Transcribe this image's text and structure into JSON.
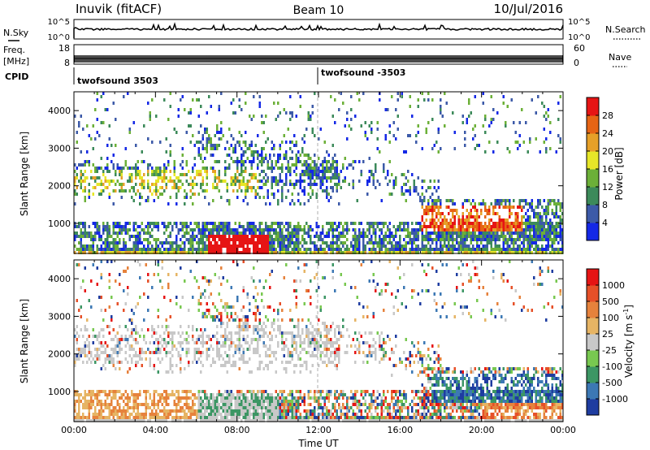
{
  "header": {
    "station": "Inuvik (fitACF)",
    "beam": "Beam 10",
    "date": "10/Jul/2016"
  },
  "panels": {
    "nsky": {
      "label": "N.Sky",
      "ticks": [
        "10^5",
        "10^0"
      ]
    },
    "nsearch": {
      "label": "N.Search",
      "ticks": [
        "10^5",
        "10^0"
      ]
    },
    "freq": {
      "label_line1": "Freq.",
      "label_line2": "[MHz]",
      "ticks": [
        "18",
        "8"
      ]
    },
    "nave": {
      "label": "Nave",
      "ticks": [
        "60",
        "0"
      ]
    },
    "cpid": {
      "label": "CPID",
      "segments": [
        "twofsound 3503",
        "twofsound -3503"
      ]
    }
  },
  "chart_data": [
    {
      "type": "heatmap",
      "name": "power",
      "ylabel": "Slant Range [km]",
      "yticks": [
        "1000",
        "2000",
        "3000",
        "4000"
      ],
      "ylim": [
        200,
        4500
      ],
      "xlim_hours": [
        0,
        24
      ],
      "colorbar": {
        "label": "Power [dB]",
        "ticks": [
          "4",
          "8",
          "12",
          "16",
          "20",
          "24",
          "28"
        ],
        "colors": [
          "#1428e6",
          "#3c5aa8",
          "#3c8a5a",
          "#6cb038",
          "#e6e628",
          "#e6a028",
          "#e66414",
          "#e61414"
        ]
      }
    },
    {
      "type": "heatmap",
      "name": "velocity",
      "ylabel": "Slant Range [km]",
      "yticks": [
        "1000",
        "2000",
        "3000",
        "4000"
      ],
      "ylim": [
        200,
        4500
      ],
      "xlim_hours": [
        0,
        24
      ],
      "xticks": [
        "00:00",
        "04:00",
        "08:00",
        "12:00",
        "16:00",
        "20:00",
        "00:00"
      ],
      "xlabel": "Time UT",
      "colorbar": {
        "label": "Velocity [m s",
        "label_sup": "-1",
        "label_end": "]",
        "ticks": [
          "1000",
          "500",
          "100",
          "25",
          "-25",
          "-100",
          "-500",
          "-1000"
        ],
        "colors": [
          "#1e3ca0",
          "#3c78b4",
          "#3c9664",
          "#78c850",
          "#c8c8c8",
          "#e6b464",
          "#e6823c",
          "#e65028",
          "#e61414"
        ]
      }
    }
  ]
}
